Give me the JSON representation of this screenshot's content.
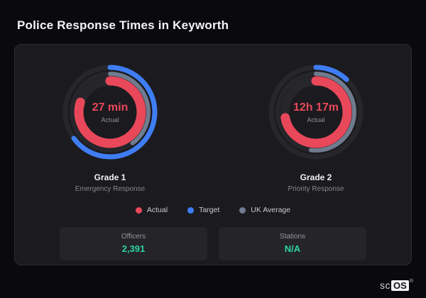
{
  "page": {
    "title": "Police Response Times in Keyworth"
  },
  "chart_data": [
    {
      "type": "gauge",
      "title": "Grade 1",
      "subtitle": "Emergency Response",
      "center_value": "27 min",
      "center_label": "Actual",
      "series": [
        {
          "name": "Actual",
          "color": "#e8485a",
          "percent": 80,
          "ring": "inner",
          "stroke": 13,
          "radius": 44
        },
        {
          "name": "Target",
          "color": "#3f7df4",
          "percent": 65,
          "ring": "outer",
          "stroke": 7,
          "radius": 63
        },
        {
          "name": "UK Average",
          "color": "#6f7b8e",
          "percent": 40,
          "ring": "middle",
          "stroke": 6,
          "radius": 54
        }
      ]
    },
    {
      "type": "gauge",
      "title": "Grade 2",
      "subtitle": "Priority Response",
      "center_value": "12h 17m",
      "center_label": "Actual",
      "series": [
        {
          "name": "Actual",
          "color": "#e8485a",
          "percent": 72,
          "ring": "inner",
          "stroke": 13,
          "radius": 44
        },
        {
          "name": "Target",
          "color": "#3f7df4",
          "percent": 12,
          "ring": "outer",
          "stroke": 7,
          "radius": 63
        },
        {
          "name": "UK Average",
          "color": "#6f7b8e",
          "percent": 52,
          "ring": "middle",
          "stroke": 6,
          "radius": 54
        }
      ]
    }
  ],
  "legend": [
    {
      "label": "Actual",
      "color": "#e8485a"
    },
    {
      "label": "Target",
      "color": "#3f7df4"
    },
    {
      "label": "UK Average",
      "color": "#6f7b8e"
    }
  ],
  "stats": [
    {
      "label": "Officers",
      "value": "2,391"
    },
    {
      "label": "Stations",
      "value": "N/A"
    }
  ],
  "logo": {
    "prefix": "sc",
    "suffix": "OS",
    "reg": "®"
  },
  "colors": {
    "track": "#26262b",
    "accent_value": "#2dd3a3"
  }
}
